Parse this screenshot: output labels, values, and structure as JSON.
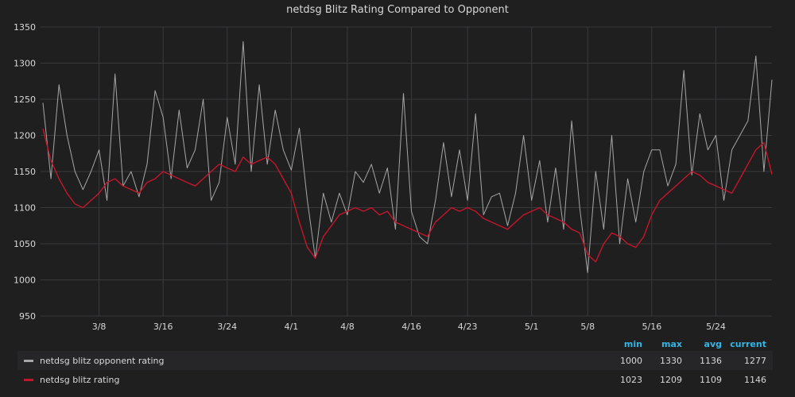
{
  "chart_data": {
    "type": "line",
    "title": "netdsg Blitz Rating Compared to Opponent",
    "ylim": [
      950,
      1350
    ],
    "y_ticks": [
      950,
      1000,
      1050,
      1100,
      1150,
      1200,
      1250,
      1300,
      1350
    ],
    "x_ticks": [
      "3/8",
      "3/16",
      "3/24",
      "4/1",
      "4/8",
      "4/16",
      "4/23",
      "5/1",
      "5/8",
      "5/16",
      "5/24"
    ],
    "grid": true,
    "series": [
      {
        "name": "netdsg blitz opponent rating",
        "color": "#a6a6a6",
        "x": [
          "3/1",
          "3/2",
          "3/3",
          "3/4",
          "3/5",
          "3/6",
          "3/7",
          "3/8",
          "3/9",
          "3/10",
          "3/11",
          "3/12",
          "3/13",
          "3/14",
          "3/15",
          "3/16",
          "3/17",
          "3/18",
          "3/19",
          "3/20",
          "3/21",
          "3/22",
          "3/23",
          "3/24",
          "3/25",
          "3/26",
          "3/27",
          "3/28",
          "3/29",
          "3/30",
          "3/31",
          "4/1",
          "4/2",
          "4/3",
          "4/4",
          "4/5",
          "4/6",
          "4/7",
          "4/8",
          "4/9",
          "4/10",
          "4/11",
          "4/12",
          "4/13",
          "4/14",
          "4/15",
          "4/16",
          "4/17",
          "4/18",
          "4/19",
          "4/20",
          "4/21",
          "4/22",
          "4/23",
          "4/24",
          "4/25",
          "4/26",
          "4/27",
          "4/28",
          "4/29",
          "4/30",
          "5/1",
          "5/2",
          "5/3",
          "5/4",
          "5/5",
          "5/6",
          "5/7",
          "5/8",
          "5/9",
          "5/10",
          "5/11",
          "5/12",
          "5/13",
          "5/14",
          "5/15",
          "5/16",
          "5/17",
          "5/18",
          "5/19",
          "5/20",
          "5/21",
          "5/22",
          "5/23",
          "5/24",
          "5/25",
          "5/26",
          "5/27",
          "5/28",
          "5/29",
          "5/30",
          "5/31"
        ],
        "values": [
          1245,
          1140,
          1270,
          1200,
          1150,
          1125,
          1150,
          1180,
          1110,
          1285,
          1130,
          1150,
          1115,
          1160,
          1262,
          1225,
          1140,
          1235,
          1155,
          1180,
          1250,
          1110,
          1135,
          1225,
          1160,
          1330,
          1150,
          1270,
          1160,
          1235,
          1180,
          1152,
          1210,
          1110,
          1030,
          1120,
          1080,
          1120,
          1090,
          1150,
          1135,
          1160,
          1120,
          1155,
          1070,
          1258,
          1095,
          1060,
          1050,
          1110,
          1190,
          1115,
          1180,
          1110,
          1230,
          1090,
          1115,
          1120,
          1075,
          1120,
          1200,
          1110,
          1165,
          1080,
          1155,
          1070,
          1220,
          1100,
          1010,
          1150,
          1070,
          1200,
          1050,
          1140,
          1080,
          1150,
          1180,
          1180,
          1130,
          1160,
          1290,
          1145,
          1230,
          1180,
          1200,
          1110,
          1180,
          1200,
          1220,
          1310,
          1150,
          1277
        ]
      },
      {
        "name": "netdsg blitz rating",
        "color": "#c4162a",
        "x": [
          "3/1",
          "3/2",
          "3/3",
          "3/4",
          "3/5",
          "3/6",
          "3/7",
          "3/8",
          "3/9",
          "3/10",
          "3/11",
          "3/12",
          "3/13",
          "3/14",
          "3/15",
          "3/16",
          "3/17",
          "3/18",
          "3/19",
          "3/20",
          "3/21",
          "3/22",
          "3/23",
          "3/24",
          "3/25",
          "3/26",
          "3/27",
          "3/28",
          "3/29",
          "3/30",
          "3/31",
          "4/1",
          "4/2",
          "4/3",
          "4/4",
          "4/5",
          "4/6",
          "4/7",
          "4/8",
          "4/9",
          "4/10",
          "4/11",
          "4/12",
          "4/13",
          "4/14",
          "4/15",
          "4/16",
          "4/17",
          "4/18",
          "4/19",
          "4/20",
          "4/21",
          "4/22",
          "4/23",
          "4/24",
          "4/25",
          "4/26",
          "4/27",
          "4/28",
          "4/29",
          "4/30",
          "5/1",
          "5/2",
          "5/3",
          "5/4",
          "5/5",
          "5/6",
          "5/7",
          "5/8",
          "5/9",
          "5/10",
          "5/11",
          "5/12",
          "5/13",
          "5/14",
          "5/15",
          "5/16",
          "5/17",
          "5/18",
          "5/19",
          "5/20",
          "5/21",
          "5/22",
          "5/23",
          "5/24",
          "5/25",
          "5/26",
          "5/27",
          "5/28",
          "5/29",
          "5/30",
          "5/31"
        ],
        "values": [
          1209,
          1165,
          1140,
          1120,
          1105,
          1100,
          1110,
          1120,
          1135,
          1140,
          1130,
          1125,
          1120,
          1135,
          1140,
          1150,
          1145,
          1140,
          1135,
          1130,
          1140,
          1150,
          1160,
          1155,
          1150,
          1170,
          1160,
          1165,
          1170,
          1160,
          1140,
          1120,
          1080,
          1045,
          1030,
          1060,
          1075,
          1090,
          1095,
          1100,
          1095,
          1100,
          1090,
          1095,
          1080,
          1075,
          1070,
          1065,
          1060,
          1080,
          1090,
          1100,
          1095,
          1100,
          1095,
          1085,
          1080,
          1075,
          1070,
          1080,
          1090,
          1095,
          1100,
          1090,
          1085,
          1080,
          1070,
          1065,
          1035,
          1025,
          1050,
          1065,
          1060,
          1050,
          1045,
          1060,
          1090,
          1110,
          1120,
          1130,
          1140,
          1150,
          1145,
          1135,
          1130,
          1125,
          1120,
          1140,
          1160,
          1180,
          1190,
          1146
        ]
      }
    ]
  },
  "legend": {
    "headers": {
      "min": "min",
      "max": "max",
      "avg": "avg",
      "current": "current"
    },
    "rows": [
      {
        "name": "netdsg blitz opponent rating",
        "color": "#a6a6a6",
        "min": "1000",
        "max": "1330",
        "avg": "1136",
        "current": "1277"
      },
      {
        "name": "netdsg blitz rating",
        "color": "#c4162a",
        "min": "1023",
        "max": "1209",
        "avg": "1109",
        "current": "1146"
      }
    ]
  }
}
